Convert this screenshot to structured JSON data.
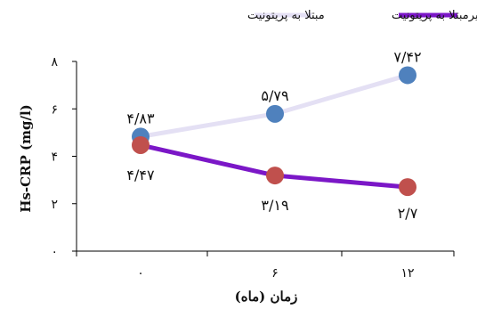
{
  "chart_data": {
    "type": "line",
    "x": [
      "۰",
      "۶",
      "۱۲"
    ],
    "xlabel": "زمان (ماه)",
    "ylabel": "Hs-CRP (mg/l)",
    "ylim": [
      0,
      8
    ],
    "yticks": [
      "۰",
      "۲",
      "۴",
      "۶",
      "۸"
    ],
    "legend_position": "top",
    "grid": false,
    "series": [
      {
        "name": "مبتلا به پریتونیت",
        "values": [
          4.83,
          5.79,
          7.42
        ],
        "labels": [
          "۴/۸۳",
          "۵/۷۹",
          "۷/۴۲"
        ],
        "line_color": "#e4e0f4",
        "marker_color": "#4f81bd",
        "legend_color": "#e4e0f4"
      },
      {
        "name": "غیرمبتلا به پریتونیت",
        "values": [
          4.47,
          3.19,
          2.7
        ],
        "labels": [
          "۴/۴۷",
          "۳/۱۹",
          "۲/۷"
        ],
        "line_color": "#7b17c7",
        "marker_color": "#c0504d",
        "legend_color": "#7b17c7"
      }
    ]
  }
}
